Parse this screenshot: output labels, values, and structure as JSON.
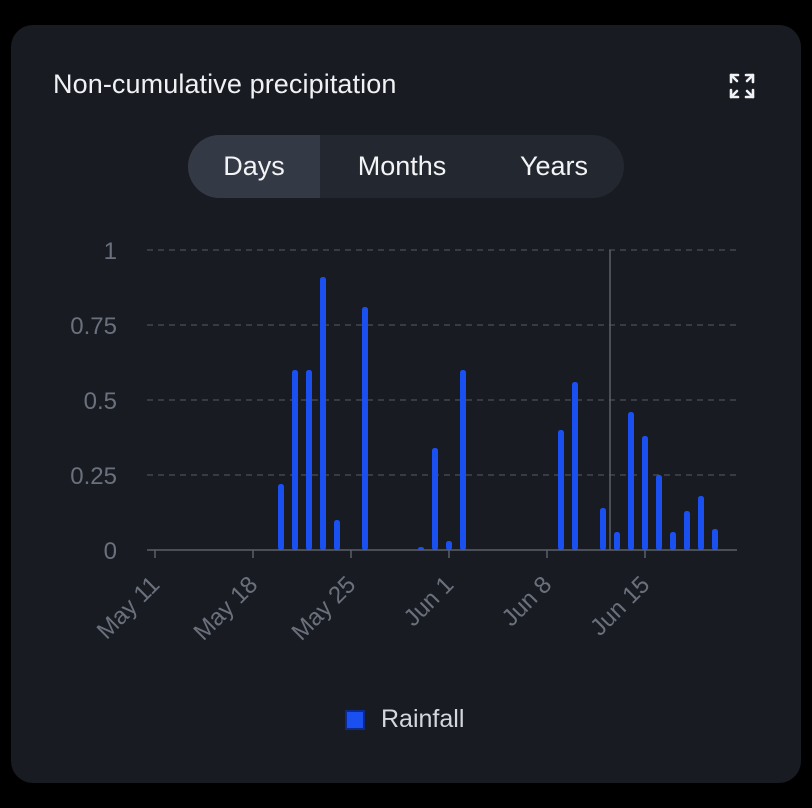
{
  "card": {
    "title": "Non-cumulative precipitation",
    "expand_icon": "expand-icon"
  },
  "tabs": [
    {
      "label": "Days",
      "active": true
    },
    {
      "label": "Months",
      "active": false
    },
    {
      "label": "Years",
      "active": false
    }
  ],
  "colors": {
    "background": "#181b21",
    "bar": "#1a4ff0",
    "grid": "#4a4f59",
    "axis_text": "#6b717c",
    "cursor_line": "#5a5f68"
  },
  "chart_data": {
    "type": "bar",
    "ylim": [
      0,
      1
    ],
    "yticks": [
      "0",
      "0.25",
      "0.5",
      "0.75",
      "1"
    ],
    "xticks": [
      "May 11",
      "May 18",
      "May 25",
      "Jun 1",
      "Jun 8",
      "Jun 15"
    ],
    "x_range": [
      "May 11",
      "Jun 20"
    ],
    "grid": true,
    "cursor_date": "Jun 10",
    "legend_position": "bottom",
    "series": [
      {
        "name": "Rainfall",
        "points": [
          {
            "date": "May 20",
            "value": 0.22
          },
          {
            "date": "May 21",
            "value": 0.6
          },
          {
            "date": "May 22",
            "value": 0.6
          },
          {
            "date": "May 23",
            "value": 0.91
          },
          {
            "date": "May 24",
            "value": 0.1
          },
          {
            "date": "May 26",
            "value": 0.81
          },
          {
            "date": "May 30",
            "value": 0.01
          },
          {
            "date": "May 31",
            "value": 0.34
          },
          {
            "date": "Jun 1",
            "value": 0.03
          },
          {
            "date": "Jun 2",
            "value": 0.6
          },
          {
            "date": "Jun 9",
            "value": 0.4
          },
          {
            "date": "Jun 10",
            "value": 0.56
          },
          {
            "date": "Jun 12",
            "value": 0.14
          },
          {
            "date": "Jun 13",
            "value": 0.06
          },
          {
            "date": "Jun 14",
            "value": 0.46
          },
          {
            "date": "Jun 15",
            "value": 0.38
          },
          {
            "date": "Jun 16",
            "value": 0.25
          },
          {
            "date": "Jun 17",
            "value": 0.06
          },
          {
            "date": "Jun 18",
            "value": 0.13
          },
          {
            "date": "Jun 19",
            "value": 0.18
          },
          {
            "date": "Jun 20",
            "value": 0.07
          }
        ]
      }
    ]
  }
}
